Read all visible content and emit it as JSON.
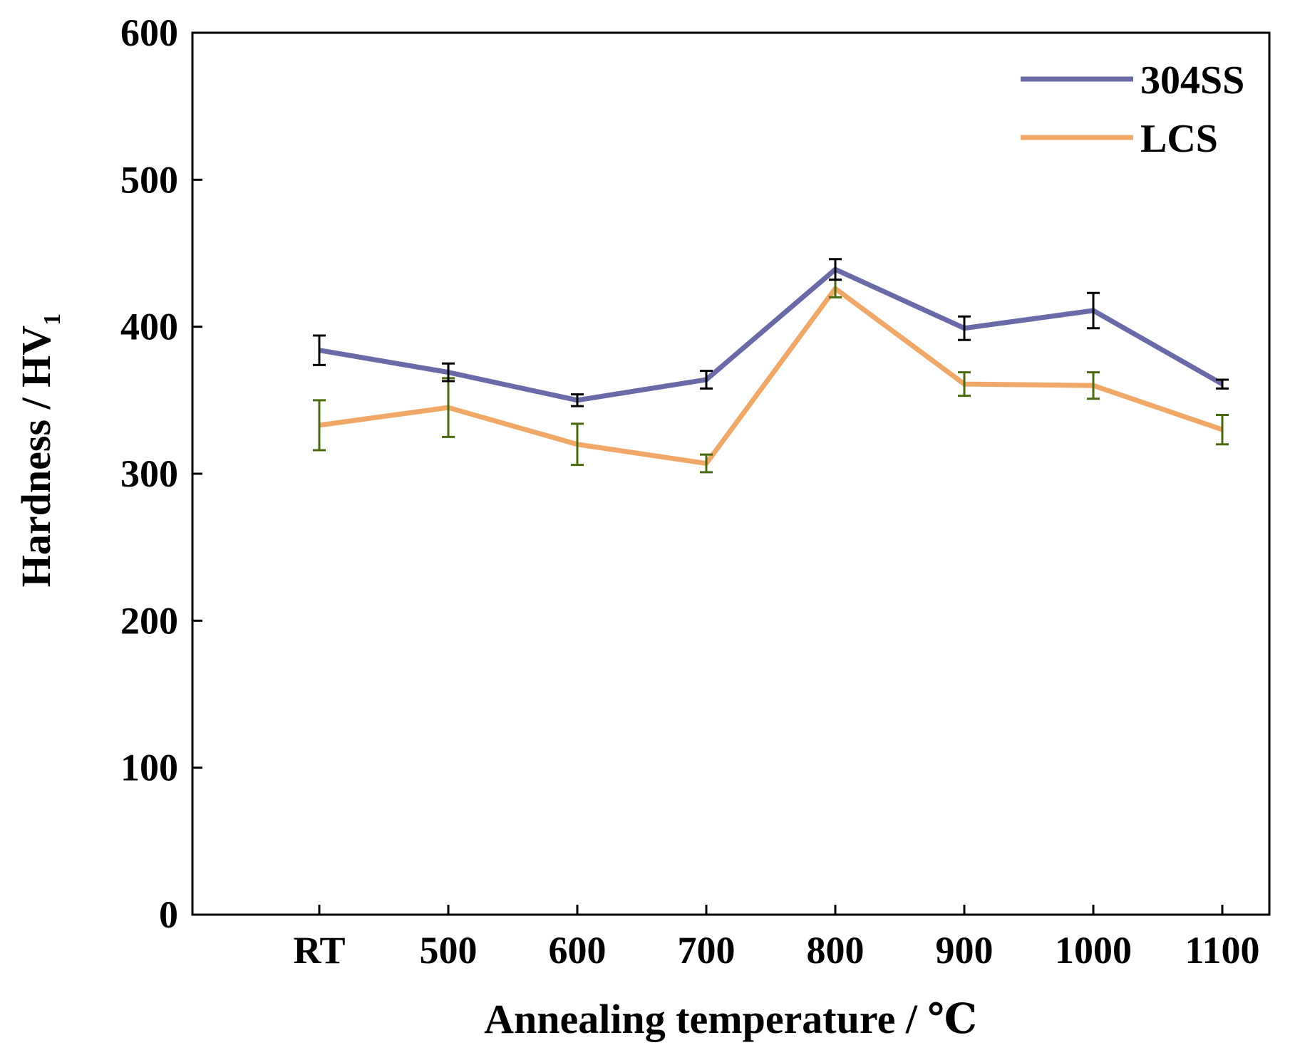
{
  "chart_data": {
    "type": "line",
    "categories": [
      "RT",
      "500",
      "600",
      "700",
      "800",
      "900",
      "1000",
      "1100"
    ],
    "series": [
      {
        "name": "304SS",
        "color": "#6a6aa8",
        "error_color": "#000000",
        "values": [
          384,
          369,
          350,
          364,
          439,
          399,
          411,
          361
        ],
        "errors": [
          10,
          6,
          4,
          6,
          7,
          8,
          12,
          3
        ]
      },
      {
        "name": "LCS",
        "color": "#f0a868",
        "error_color": "#4a6a10",
        "values": [
          333,
          345,
          320,
          307,
          426,
          361,
          360,
          330
        ],
        "errors": [
          17,
          20,
          14,
          6,
          6,
          8,
          9,
          10
        ]
      }
    ],
    "yticks": [
      0,
      100,
      200,
      300,
      400,
      500,
      600
    ],
    "ylim": [
      0,
      600
    ],
    "xlabel": "Annealing temperature / ℃",
    "ylabel_main": "Hardness / HV",
    "ylabel_sub": "1",
    "legend_position": "top-right",
    "grid": false
  }
}
